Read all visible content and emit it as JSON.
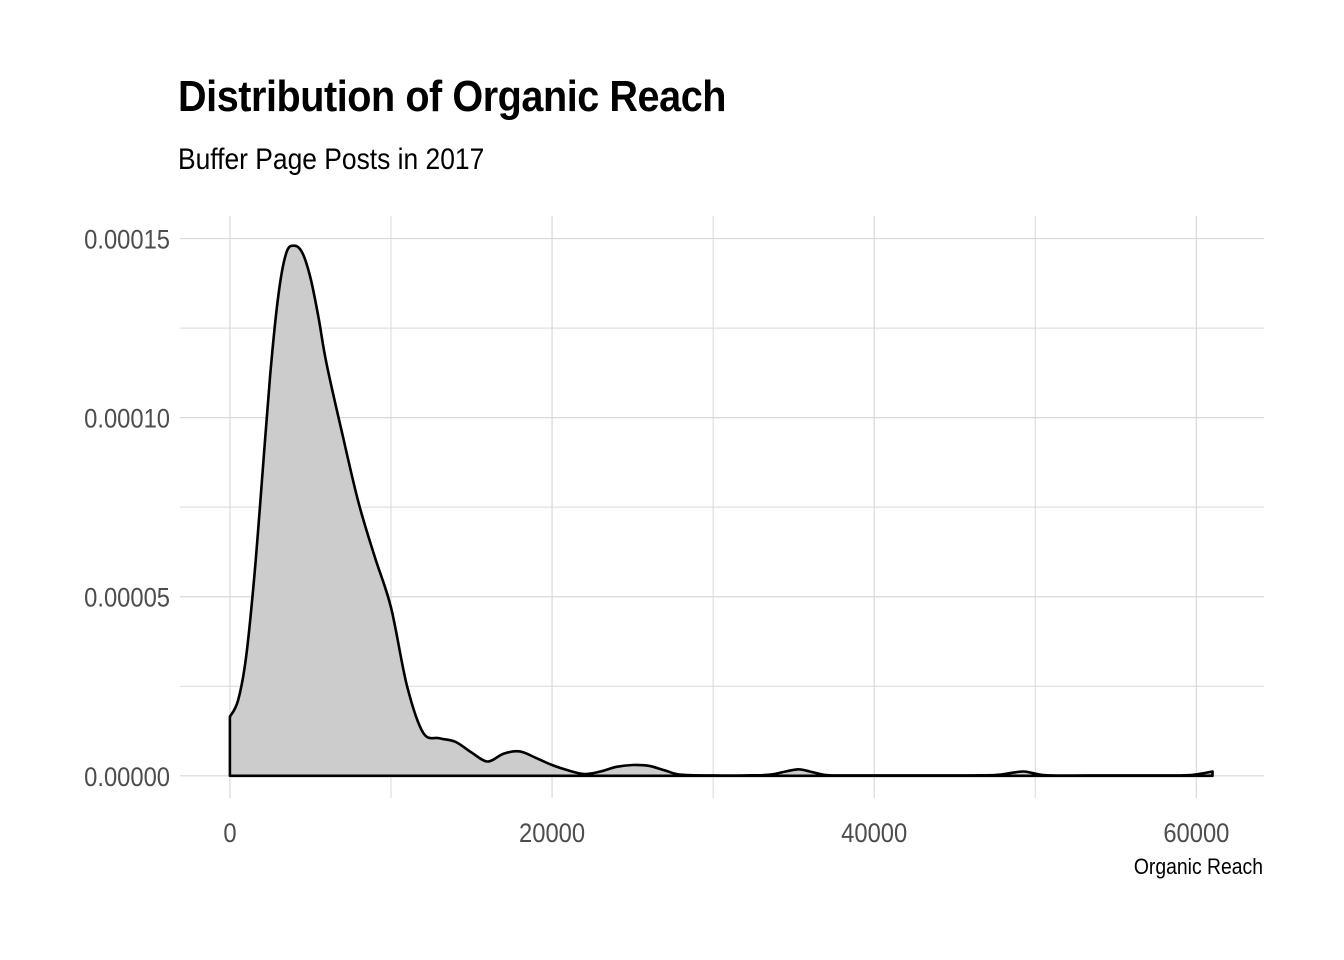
{
  "chart_data": {
    "type": "area",
    "title": "Distribution of Organic Reach",
    "subtitle": "Buffer Page Posts in 2017",
    "xlabel": "Organic Reach",
    "ylabel": "",
    "xlim": [
      -3100,
      64200
    ],
    "ylim": [
      -6.2e-06,
      0.0001563
    ],
    "xticks": [
      0,
      20000,
      40000,
      60000
    ],
    "xtick_labels": [
      "0",
      "20000",
      "40000",
      "60000"
    ],
    "yticks": [
      0,
      5e-05,
      0.0001,
      0.00015
    ],
    "ytick_labels": [
      "0.00000",
      "0.00005",
      "0.00010",
      "0.00015"
    ],
    "x_minor": [
      10000,
      30000,
      50000
    ],
    "y_minor": [
      2.5e-05,
      7.5e-05,
      0.000125
    ],
    "grid": true,
    "fill_color": "#cccccc",
    "line_color": "#000000",
    "grid_color": "#d9d9d9",
    "series": [
      {
        "x": [
          0,
          500,
          1000,
          1500,
          2000,
          2500,
          3000,
          3500,
          4000,
          4500,
          5000,
          5500,
          6000,
          7000,
          8000,
          9000,
          10000,
          11000,
          12000,
          13000,
          14000,
          15000,
          16000,
          17000,
          18000,
          19000,
          20000,
          21000,
          22000,
          23000,
          24000,
          25000,
          26000,
          27000,
          28000,
          30000,
          32000,
          33500,
          34500,
          35300,
          36000,
          37000,
          38000,
          40000,
          45000,
          47500,
          48500,
          49300,
          50000,
          51000,
          55000,
          59000,
          60000,
          61000
        ],
        "y": [
          1.65e-05,
          2.1e-05,
          3.3e-05,
          5.5e-05,
          8.3e-05,
          0.000112,
          0.000134,
          0.000146,
          0.000148,
          0.000146,
          0.000139,
          0.000128,
          0.000115,
          9.5e-05,
          7.6e-05,
          6.1e-05,
          4.7e-05,
          2.5e-05,
          1.2e-05,
          1.05e-05,
          9.5e-06,
          6.5e-06,
          4e-06,
          6.2e-06,
          6.8e-06,
          5e-06,
          3e-06,
          1.5e-06,
          5e-07,
          1.2e-06,
          2.5e-06,
          3e-06,
          2.8e-06,
          1.5e-06,
          3e-07,
          1e-07,
          1e-07,
          3e-07,
          1.2e-06,
          1.8e-06,
          1.2e-06,
          2e-07,
          1e-07,
          1e-07,
          1e-07,
          2e-07,
          8e-07,
          1.2e-06,
          6e-07,
          1e-07,
          1e-07,
          1e-07,
          4e-07,
          1.2e-06
        ]
      }
    ]
  }
}
